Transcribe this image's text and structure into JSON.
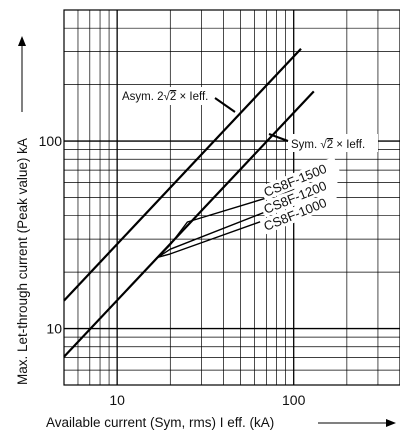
{
  "chart_data": {
    "type": "line",
    "scale": "log-log",
    "xlim": [
      5,
      400
    ],
    "ylim": [
      5,
      500
    ],
    "x_ticks": [
      {
        "value": 10,
        "label": "10"
      },
      {
        "value": 100,
        "label": "100"
      }
    ],
    "y_ticks": [
      {
        "value": 10,
        "label": "10"
      },
      {
        "value": 100,
        "label": "100"
      }
    ],
    "xlabel": "Available current (Sym, rms) I eff. (kA)",
    "ylabel": "Max. Let-through current (Peak value) kA",
    "grid": true,
    "series": [
      {
        "name": "Asym. 2√2 × Ieff.",
        "points": [
          [
            5,
            14.1
          ],
          [
            110,
            311
          ]
        ]
      },
      {
        "name": "Sym. √2 × Ieff.",
        "points": [
          [
            5,
            7.07
          ],
          [
            130,
            184
          ]
        ]
      },
      {
        "name": "CS8F-1500",
        "points": [
          [
            17,
            24
          ],
          [
            20,
            28
          ],
          [
            25,
            37
          ],
          [
            100,
            55
          ]
        ]
      },
      {
        "name": "CS8F-1200",
        "points": [
          [
            17,
            24
          ],
          [
            20,
            26.5
          ],
          [
            100,
            48
          ]
        ]
      },
      {
        "name": "CS8F-1000",
        "points": [
          [
            17,
            24
          ],
          [
            20,
            25
          ],
          [
            100,
            43
          ]
        ]
      }
    ],
    "annotations": {
      "asym": {
        "pre": "Asym. 2",
        "sqrt": "√",
        "radicand": "2",
        "post": " × Ieff."
      },
      "sym": {
        "pre": "Sym. ",
        "sqrt": "√",
        "radicand": "2",
        "post": " × Ieff."
      }
    }
  }
}
